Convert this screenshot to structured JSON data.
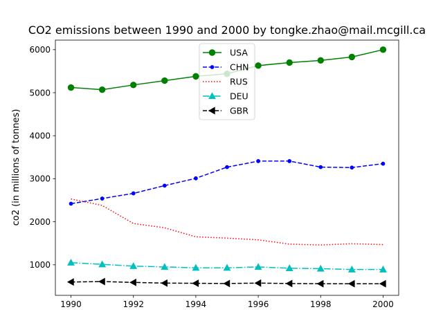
{
  "chart_data": {
    "type": "line",
    "title": "CO2 emissions between 1990 and 2000 by tongke.zhao@mail.mcgill.ca",
    "xlabel": "",
    "ylabel": "co2 (in millions of tonnes)",
    "x": [
      1990,
      1991,
      1992,
      1993,
      1994,
      1995,
      1996,
      1997,
      1998,
      1999,
      2000
    ],
    "xlim": [
      1989.5,
      2000.5
    ],
    "ylim": [
      290,
      6222
    ],
    "xticks": [
      "1990",
      "1992",
      "1994",
      "1996",
      "1998",
      "2000"
    ],
    "yticks": [
      "1000",
      "2000",
      "3000",
      "4000",
      "5000",
      "6000"
    ],
    "grid": false,
    "legend_position": "top-center",
    "series": [
      {
        "name": "USA",
        "color": "#008000",
        "line": "solid",
        "marker": "circle",
        "values": [
          5120,
          5070,
          5180,
          5280,
          5380,
          5440,
          5630,
          5700,
          5750,
          5830,
          6000
        ]
      },
      {
        "name": "CHN",
        "color": "#0000ff",
        "line": "dashed",
        "marker": "point",
        "values": [
          2420,
          2540,
          2660,
          2840,
          3010,
          3270,
          3410,
          3410,
          3270,
          3260,
          3350
        ]
      },
      {
        "name": "RUS",
        "color": "#ff0000",
        "line": "dotted",
        "marker": "none",
        "values": [
          2530,
          2380,
          1960,
          1860,
          1650,
          1620,
          1580,
          1480,
          1460,
          1490,
          1470
        ]
      },
      {
        "name": "DEU",
        "color": "#00bfbf",
        "line": "dashdot",
        "marker": "triangle-up",
        "values": [
          1050,
          1010,
          970,
          950,
          930,
          930,
          950,
          920,
          910,
          890,
          890
        ]
      },
      {
        "name": "GBR",
        "color": "#000000",
        "line": "dashed",
        "marker": "triangle-left",
        "values": [
          600,
          610,
          590,
          575,
          570,
          565,
          575,
          565,
          560,
          560,
          560
        ]
      }
    ]
  }
}
